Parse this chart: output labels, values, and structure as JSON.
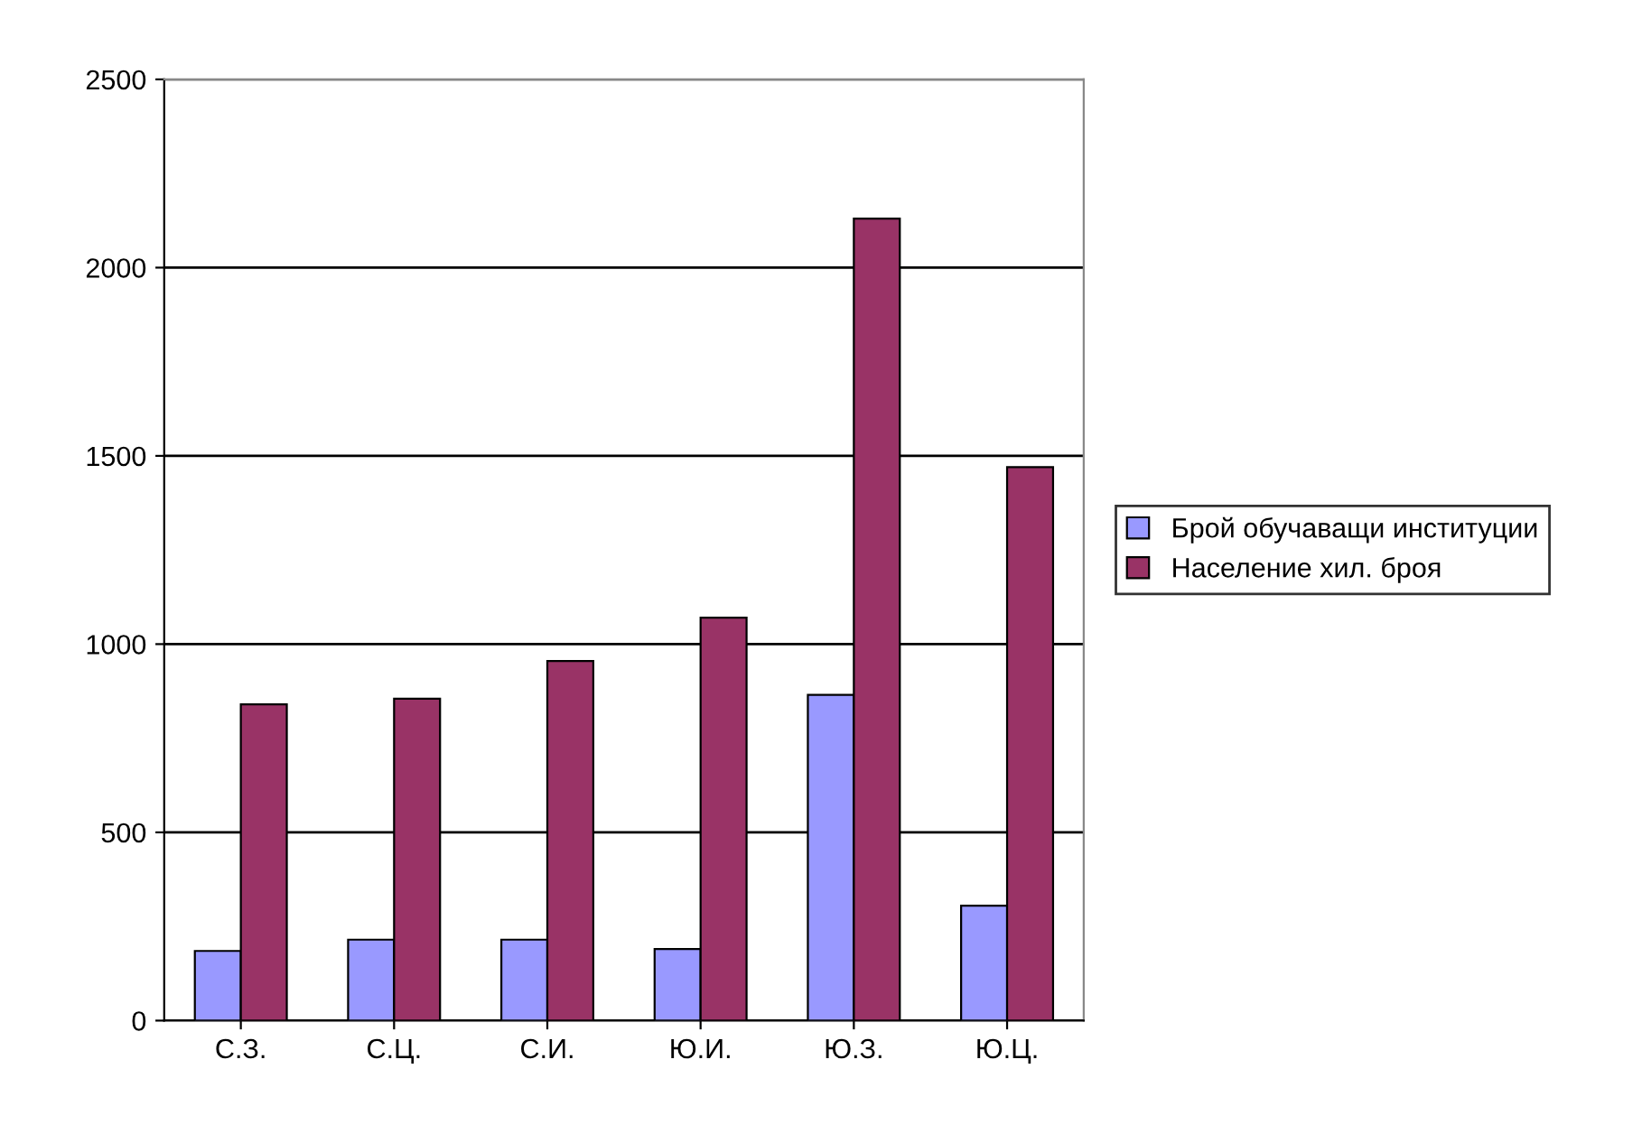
{
  "chart_data": {
    "type": "bar",
    "categories": [
      "С.З.",
      "С.Ц.",
      "С.И.",
      "Ю.И.",
      "Ю.З.",
      "Ю.Ц."
    ],
    "series": [
      {
        "name": "Брой обучаващи институции",
        "color": "#9999ff",
        "values": [
          185,
          215,
          215,
          190,
          865,
          305
        ]
      },
      {
        "name": "Население хил. броя",
        "color": "#993366",
        "values": [
          840,
          855,
          955,
          1070,
          2130,
          1470
        ]
      }
    ],
    "ylim": [
      0,
      2500
    ],
    "yticks": [
      0,
      500,
      1000,
      1500,
      2000,
      2500
    ],
    "grid": "y",
    "legend": "right"
  }
}
